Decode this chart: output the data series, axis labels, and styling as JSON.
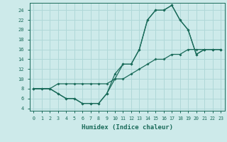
{
  "xlabel": "Humidex (Indice chaleur)",
  "bg_color": "#cdeaea",
  "grid_color": "#b0d8d8",
  "line_color": "#1a6b5a",
  "xlim": [
    -0.5,
    23.5
  ],
  "ylim": [
    3.5,
    25.5
  ],
  "xticks": [
    0,
    1,
    2,
    3,
    4,
    5,
    6,
    7,
    8,
    9,
    10,
    11,
    12,
    13,
    14,
    15,
    16,
    17,
    18,
    19,
    20,
    21,
    22,
    23
  ],
  "yticks": [
    4,
    6,
    8,
    10,
    12,
    14,
    16,
    18,
    20,
    22,
    24
  ],
  "curve1_x": [
    0,
    1,
    2,
    3,
    4,
    5,
    6,
    7,
    8,
    9,
    10,
    11,
    12,
    13,
    14,
    15,
    16,
    17,
    18,
    19,
    20,
    21,
    22,
    23
  ],
  "curve1_y": [
    8,
    8,
    8,
    7,
    6,
    6,
    5,
    5,
    5,
    7,
    10,
    13,
    13,
    16,
    22,
    24,
    24,
    25,
    22,
    20,
    15,
    16,
    16,
    16
  ],
  "curve2_x": [
    0,
    1,
    2,
    3,
    4,
    5,
    6,
    7,
    8,
    9,
    10,
    11,
    12,
    13,
    14,
    15,
    16,
    17,
    18,
    19,
    20,
    21,
    22,
    23
  ],
  "curve2_y": [
    8,
    8,
    8,
    9,
    9,
    9,
    9,
    9,
    9,
    9,
    10,
    10,
    11,
    12,
    13,
    14,
    14,
    15,
    15,
    16,
    16,
    16,
    16,
    16
  ],
  "curve3_x": [
    0,
    2,
    3,
    4,
    5,
    6,
    7,
    8,
    9,
    10,
    11,
    12,
    13,
    14,
    15,
    16,
    17,
    18,
    19,
    20,
    21,
    22,
    23
  ],
  "curve3_y": [
    8,
    8,
    7,
    6,
    6,
    5,
    5,
    5,
    7,
    11,
    13,
    13,
    16,
    22,
    24,
    24,
    25,
    22,
    20,
    15,
    16,
    16,
    16
  ]
}
